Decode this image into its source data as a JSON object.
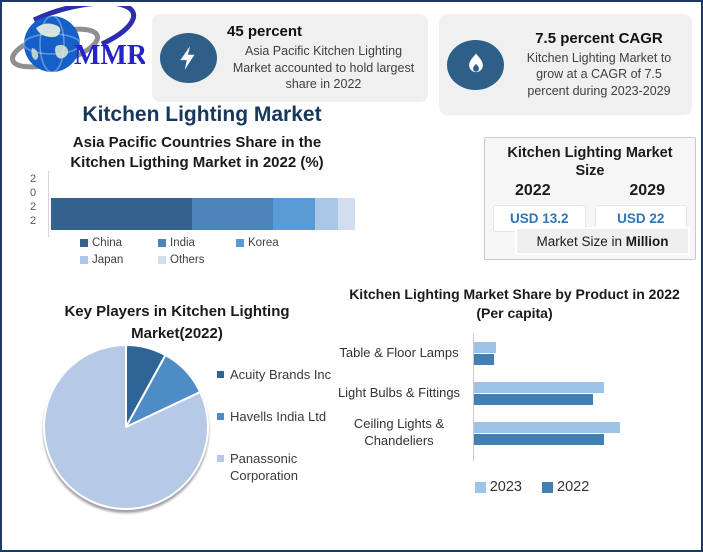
{
  "page": {
    "title": "Kitchen Lighting Market"
  },
  "logo": {
    "text": "MMR"
  },
  "stat_cards": [
    {
      "icon": "lightning-icon",
      "headline": "45 percent",
      "body": "Asia Pacific Kitchen Lighting Market accounted to hold largest share in 2022"
    },
    {
      "icon": "flame-icon",
      "headline": "7.5 percent CAGR",
      "body": "Kitchen Lighting Market to grow at a CAGR of 7.5 percent during 2023-2029"
    }
  ],
  "market_size_panel": {
    "title": "Kitchen Lighting Market Size",
    "years": [
      "2022",
      "2029"
    ],
    "values": [
      "USD 13.2",
      "USD 22"
    ],
    "footnote_prefix": "Market Size in ",
    "footnote_bold": "Million",
    "value_color": "#2e75b6"
  },
  "chart_data": [
    {
      "type": "bar",
      "subtype": "stacked_horizontal",
      "title": "Asia Pacific Countries Share in the Kitchen  Ligthing Market in 2022 (%)",
      "title_lines": [
        "Asia Pacific Countries Share in the",
        "Kitchen  Ligthing Market in 2022 (%)"
      ],
      "category": "2022",
      "unit": "percent",
      "legend_position": "bottom",
      "series": [
        {
          "name": "China",
          "value": 46.5,
          "color": "#35618f"
        },
        {
          "name": "India",
          "value": 26.5,
          "color": "#4a84b8"
        },
        {
          "name": "Korea",
          "value": 14.0,
          "color": "#5b9bd5"
        },
        {
          "name": "Japan",
          "value": 7.5,
          "color": "#a9c7e6"
        },
        {
          "name": "Others",
          "value": 5.5,
          "color": "#d2deee"
        }
      ]
    },
    {
      "type": "pie",
      "title": "Key Players in Kitchen Lighting Market(2022)",
      "title_lines": [
        "Key Players in Kitchen Lighting",
        "Market(2022)"
      ],
      "legend_position": "right",
      "slices": [
        {
          "name": "Acuity Brands Inc",
          "value": 8,
          "color": "#2f6496"
        },
        {
          "name": "Havells India Ltd",
          "value": 10,
          "color": "#4d8cc4"
        },
        {
          "name": "Panassonic Corporation",
          "value": 82,
          "color": "#b6c9e6"
        }
      ]
    },
    {
      "type": "bar",
      "subtype": "grouped_horizontal",
      "title": "Kitchen Lighting Market Share by Product in 2022 (Per capita)",
      "title_lines": [
        "Kitchen Lighting Market Share by Product in 2022",
        "(Per capita)"
      ],
      "categories": [
        "Table & Floor Lamps",
        "Light Bulbs & Fittings",
        "Ceiling Lights & Chandeliers"
      ],
      "xlim": [
        0,
        110
      ],
      "axis_labels_visible": false,
      "legend_position": "bottom",
      "series": [
        {
          "name": "2023",
          "color": "#9dc3e6",
          "values": [
            15,
            89,
            100
          ]
        },
        {
          "name": "2022",
          "color": "#4280b4",
          "values": [
            14,
            82,
            89
          ]
        }
      ]
    }
  ],
  "colors": {
    "page_border": "#1f3864",
    "page_title": "#17375d",
    "stat_icon_circle": "#2d5f88",
    "stat_card_bg": "#f0f0f0",
    "usd_value": "#2e75b6"
  }
}
